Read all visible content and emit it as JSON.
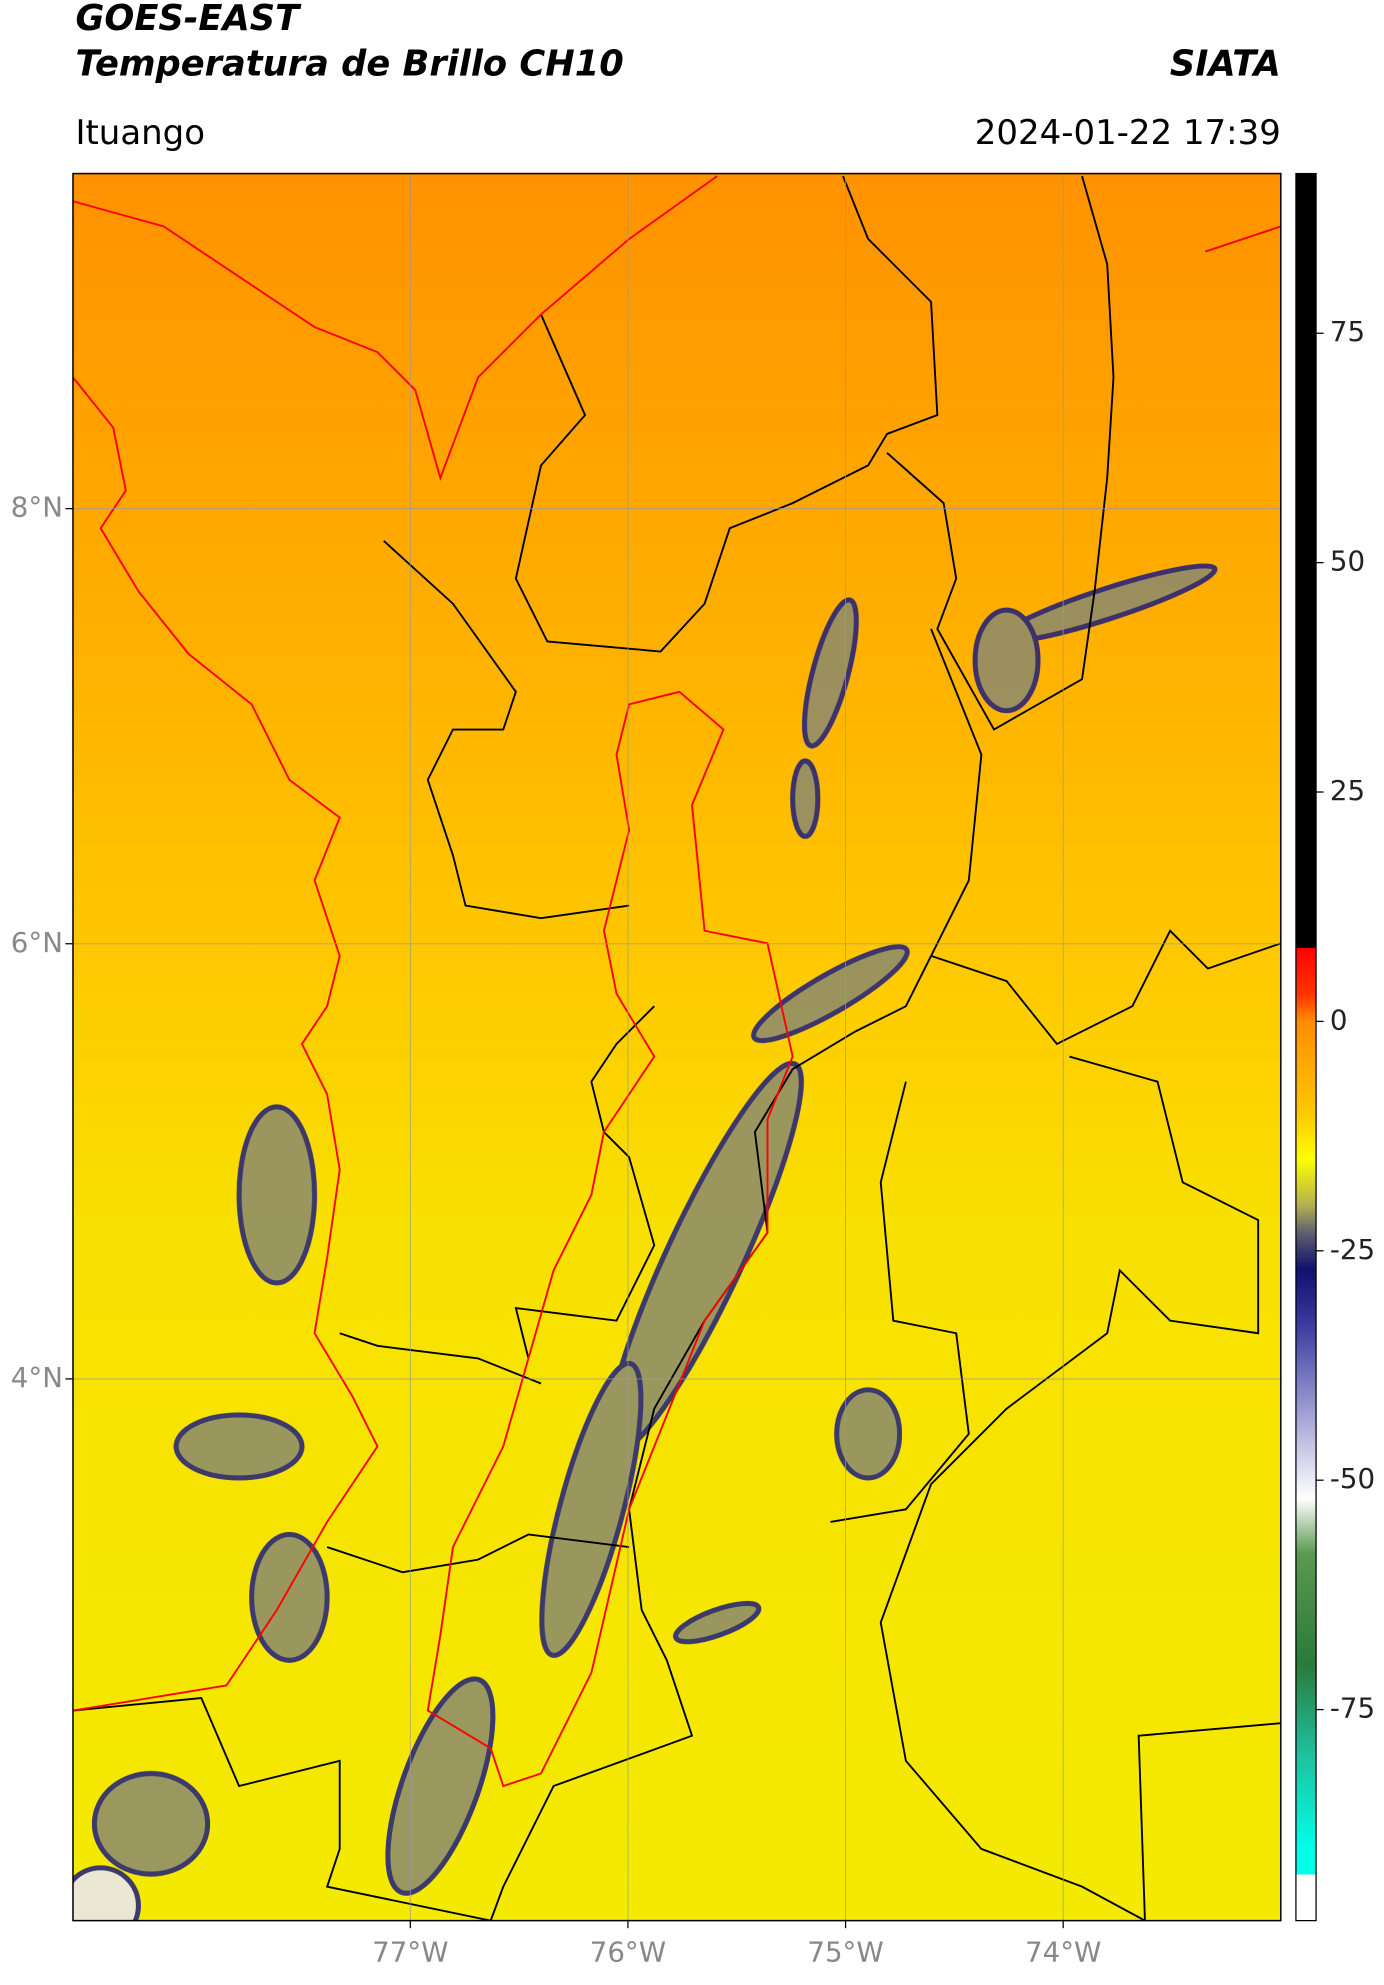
{
  "header": {
    "title_line1": "GOES-EAST",
    "title_line2": "Temperatura de Brillo CH10",
    "organization": "SIATA",
    "location": "Ituango",
    "datetime": "2024-01-22 17:39"
  },
  "map": {
    "lon_range": [
      -78.55,
      -73.0
    ],
    "lat_range": [
      1.51,
      9.54
    ],
    "lat_ticks": [
      {
        "value": 8,
        "label": "8°N"
      },
      {
        "value": 6,
        "label": "6°N"
      },
      {
        "value": 4,
        "label": "4°N"
      }
    ],
    "lon_ticks": [
      {
        "value": -77,
        "label": "77°W"
      },
      {
        "value": -76,
        "label": "76°W"
      },
      {
        "value": -75,
        "label": "75°W"
      },
      {
        "value": -74,
        "label": "74°W"
      }
    ]
  },
  "colorbar": {
    "range": [
      -98,
      92.4
    ],
    "ticks": [
      75,
      50,
      25,
      0,
      -25,
      -50,
      -75
    ],
    "stops": [
      [
        92.4,
        "#000000"
      ],
      [
        8,
        "#000000"
      ],
      [
        8,
        "#ff0000"
      ],
      [
        3,
        "#ff3300"
      ],
      [
        0,
        "#ff8c00"
      ],
      [
        -10,
        "#ffc800"
      ],
      [
        -15,
        "#ffff00"
      ],
      [
        -20,
        "#b5b050"
      ],
      [
        -23,
        "#606070"
      ],
      [
        -27,
        "#10106e"
      ],
      [
        -33,
        "#3a3aa0"
      ],
      [
        -45,
        "#b8b8e0"
      ],
      [
        -52,
        "#ffffff"
      ],
      [
        -58,
        "#5a9a50"
      ],
      [
        -70,
        "#2a7a3a"
      ],
      [
        -80,
        "#20c0a0"
      ],
      [
        -90,
        "#00ffe8"
      ],
      [
        -93,
        "#00ffe8"
      ],
      [
        -93,
        "#ffffff"
      ],
      [
        -98,
        "#ffffff"
      ]
    ]
  }
}
